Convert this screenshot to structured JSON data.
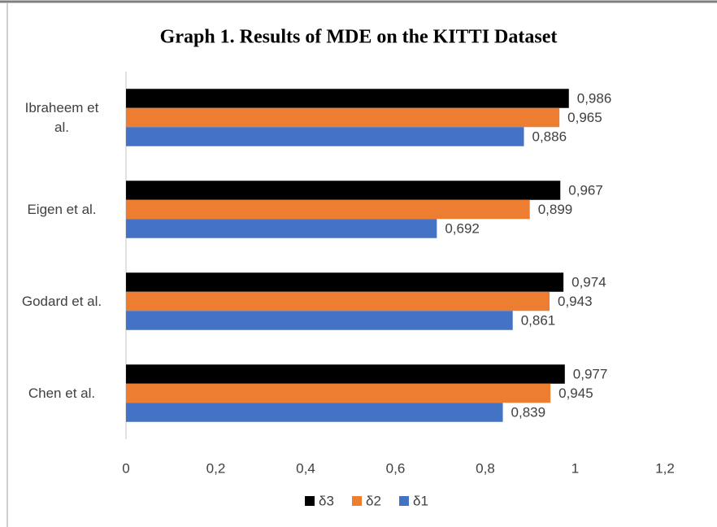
{
  "chart_data": {
    "type": "bar",
    "orientation": "horizontal",
    "title": "Graph 1. Results of MDE on the KITTI Dataset",
    "categories": [
      "Ibraheem et al.",
      "Eigen et al.",
      "Godard et al.",
      "Chen et al."
    ],
    "series": [
      {
        "name": "δ3",
        "color": "#000000",
        "values": [
          0.986,
          0.967,
          0.974,
          0.977
        ],
        "value_labels": [
          "0,986",
          "0,967",
          "0,974",
          "0,977"
        ]
      },
      {
        "name": "δ2",
        "color": "#ed7d31",
        "values": [
          0.965,
          0.899,
          0.943,
          0.945
        ],
        "value_labels": [
          "0,965",
          "0,899",
          "0,943",
          "0,945"
        ]
      },
      {
        "name": "δ1",
        "color": "#4472c4",
        "values": [
          0.886,
          0.692,
          0.861,
          0.839
        ],
        "value_labels": [
          "0,886",
          "0,692",
          "0,861",
          "0,839"
        ]
      }
    ],
    "xlim": [
      0,
      1.2
    ],
    "xticks": [
      0,
      {
        "value": 0.2,
        "label": "0,2"
      },
      {
        "value": 0.4,
        "label": "0,4"
      },
      {
        "value": 0.6,
        "label": "0,6"
      },
      {
        "value": 0.8,
        "label": "0,8"
      },
      1,
      {
        "value": 1.2,
        "label": "1,2"
      }
    ],
    "grid": false,
    "legend": "bottom"
  }
}
